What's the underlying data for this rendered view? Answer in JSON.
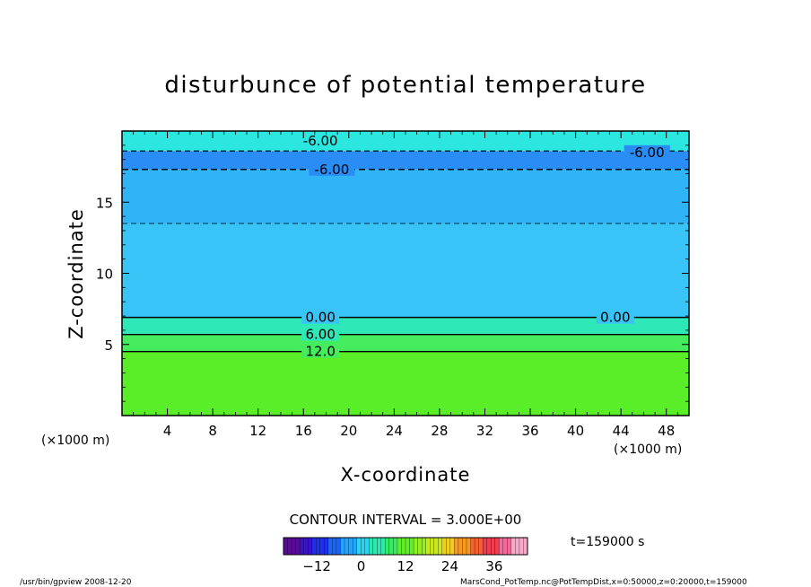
{
  "chart_data": {
    "type": "heatmap",
    "title": "disturbunce of potential temperature",
    "xlabel": "X-coordinate",
    "ylabel": "Z-coordinate",
    "x_unit_left": "(×1000 m)",
    "x_unit_right": "(×1000 m)",
    "xlim": [
      0,
      50
    ],
    "ylim": [
      0,
      20
    ],
    "x_ticks": [
      "4",
      "8",
      "12",
      "16",
      "20",
      "24",
      "28",
      "32",
      "36",
      "40",
      "44",
      "48"
    ],
    "x_tick_values": [
      4,
      8,
      12,
      16,
      20,
      24,
      28,
      32,
      36,
      40,
      44,
      48
    ],
    "y_ticks": [
      "5",
      "10",
      "15"
    ],
    "y_tick_values": [
      5,
      10,
      15
    ],
    "contour_interval_text": "CONTOUR INTERVAL = 3.000E+00",
    "time_text": "t=159000 s",
    "contour_labels": [
      {
        "text": "-6.00",
        "x": 17.5,
        "z": 19.3
      },
      {
        "text": "-6.00",
        "x": 18.5,
        "z": 17.3
      },
      {
        "text": "-6.00",
        "x": 46.3,
        "z": 18.5
      },
      {
        "text": "0.00",
        "x": 17.5,
        "z": 6.9
      },
      {
        "text": "0.00",
        "x": 43.5,
        "z": 6.9
      },
      {
        "text": "6.00",
        "x": 17.5,
        "z": 5.7
      },
      {
        "text": "12.0",
        "x": 17.5,
        "z": 4.5
      }
    ],
    "layers": [
      {
        "z": [
          0,
          4.5
        ],
        "value": 12,
        "color": "#5aee28"
      },
      {
        "z": [
          4.5,
          5.7
        ],
        "value": 9,
        "color": "#45ec5e"
      },
      {
        "z": [
          5.7,
          6.9
        ],
        "value": 3,
        "color": "#2ee8b8"
      },
      {
        "z": [
          6.9,
          13.5
        ],
        "value": -3,
        "color": "#38c4f6"
      },
      {
        "z": [
          13.5,
          17.3
        ],
        "value": -6,
        "color": "#2fb4f8"
      },
      {
        "z": [
          17.3,
          18.6
        ],
        "value": -9,
        "color": "#2a8cf5"
      },
      {
        "z": [
          18.6,
          20
        ],
        "value": -3,
        "color": "#2ce6e0"
      }
    ],
    "colorbar": {
      "ticks": [
        "−12",
        "0",
        "12",
        "24",
        "36"
      ],
      "tick_values": [
        -12,
        0,
        12,
        24,
        36
      ],
      "range": [
        -21,
        45
      ],
      "colors": [
        "#5a0a9a",
        "#3a14c8",
        "#2030e8",
        "#1e64f4",
        "#24a4fa",
        "#2cd4f0",
        "#2ee8b0",
        "#38ec60",
        "#60ee2a",
        "#96ee20",
        "#c8e820",
        "#f0cc20",
        "#f89820",
        "#f46030",
        "#f03c4c",
        "#f46a9a",
        "#f8a8c8"
      ]
    }
  },
  "footer": {
    "left": "/usr/bin/gpview   2008-12-20",
    "right": "MarsCond_PotTemp.nc@PotTempDist,x=0:50000,z=0:20000,t=159000"
  }
}
